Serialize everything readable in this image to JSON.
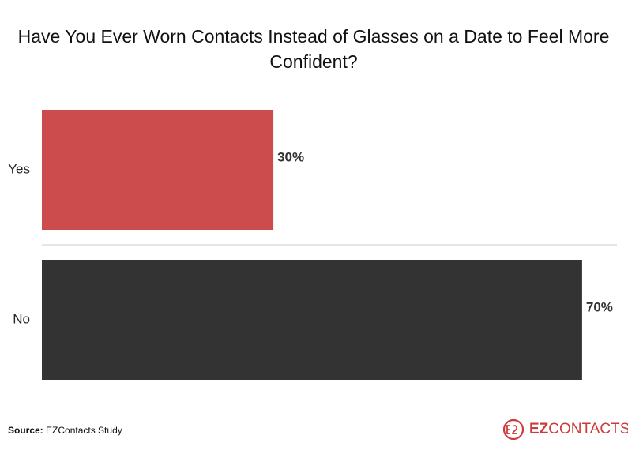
{
  "chart_data": {
    "type": "hbar",
    "title": "Have You Ever Worn Contacts Instead of Glasses on a Date to Feel More Confident?",
    "categories": [
      "Yes",
      "No"
    ],
    "values": [
      30,
      70
    ],
    "value_labels": [
      "30%",
      "70%"
    ],
    "colors": [
      "#cc4b4c",
      "#333333"
    ],
    "source_label": "Source:",
    "source": "EZContacts Study",
    "brand": [
      "EZ",
      "CONTACTS"
    ]
  }
}
